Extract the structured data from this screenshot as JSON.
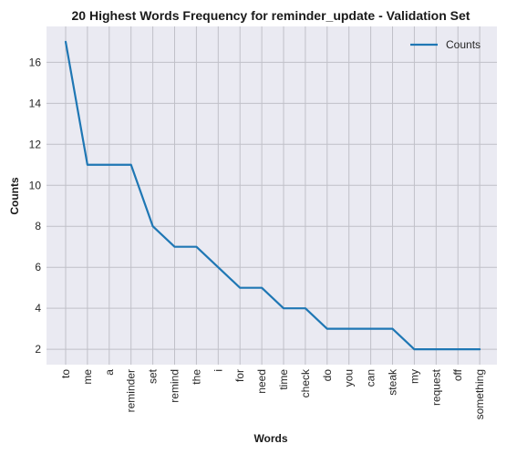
{
  "chart_data": {
    "type": "line",
    "title": "20 Highest Words Frequency for reminder_update - Validation Set",
    "xlabel": "Words",
    "ylabel": "Counts",
    "categories": [
      "to",
      "me",
      "a",
      "reminder",
      "set",
      "remind",
      "the",
      "i",
      "for",
      "need",
      "time",
      "check",
      "do",
      "you",
      "can",
      "steak",
      "my",
      "request",
      "off",
      "something"
    ],
    "series": [
      {
        "name": "Counts",
        "values": [
          17,
          11,
          11,
          11,
          8,
          7,
          7,
          6,
          5,
          5,
          4,
          4,
          3,
          3,
          3,
          3,
          2,
          2,
          2,
          2
        ]
      }
    ],
    "yticks": [
      2,
      4,
      6,
      8,
      10,
      12,
      14,
      16
    ],
    "ylim": [
      1.25,
      17.75
    ],
    "grid": true,
    "legend": "top-right",
    "colors": {
      "line": "#1f77b4",
      "plot_bg": "#eaeaf2",
      "grid": "#c0c0c8"
    }
  }
}
